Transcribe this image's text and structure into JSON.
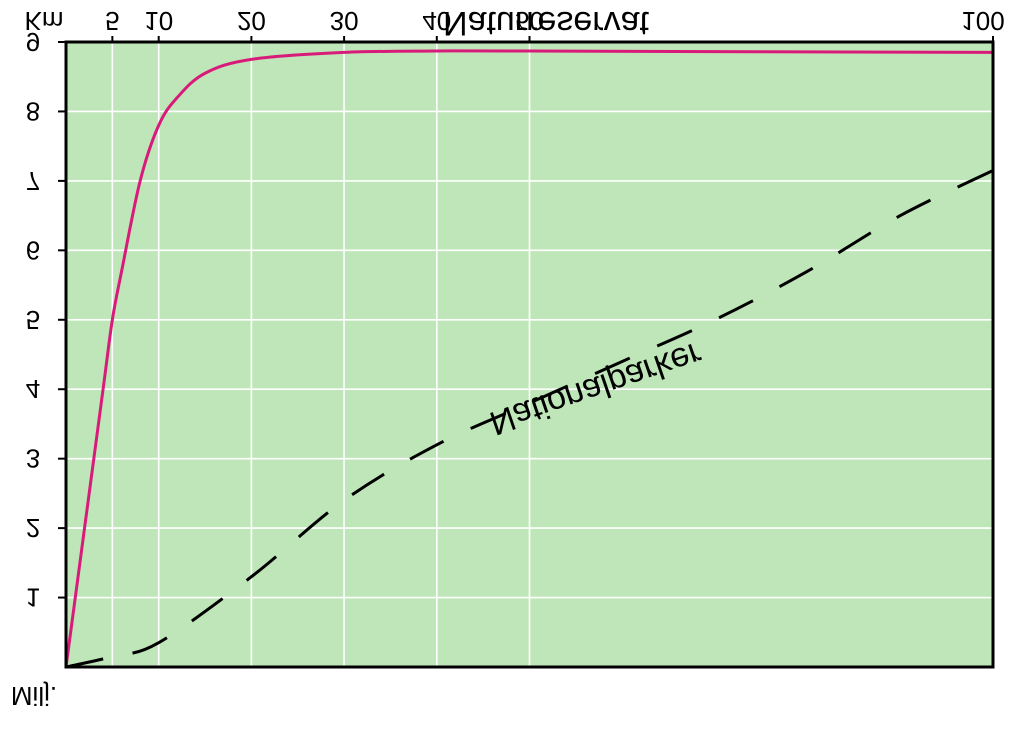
{
  "chart_data": {
    "type": "line",
    "x_axis": {
      "label": "Km",
      "ticks": [
        5,
        10,
        20,
        30,
        40,
        50,
        100
      ],
      "tick_labels": [
        "5",
        "10",
        "20",
        "30",
        "40",
        "50",
        "100"
      ],
      "range": [
        0,
        100
      ]
    },
    "y_axis": {
      "label": "Milj.",
      "ticks": [
        1,
        2,
        3,
        4,
        5,
        6,
        7,
        8,
        9
      ],
      "tick_labels": [
        "1",
        "2",
        "3",
        "4",
        "5",
        "6",
        "7",
        "8",
        "9"
      ],
      "range": [
        0,
        9
      ]
    },
    "series": [
      {
        "name": "Nationalparker",
        "style": "dashed",
        "color": "#000000",
        "x": [
          0,
          5,
          10,
          20,
          30,
          40,
          50,
          60,
          70,
          80,
          90,
          100
        ],
        "y": [
          0,
          0.15,
          0.35,
          1.3,
          2.4,
          3.2,
          3.8,
          4.4,
          5.0,
          5.7,
          6.5,
          7.15
        ]
      },
      {
        "name": "Naturreservat",
        "style": "solid",
        "color": "#d81b7a",
        "x": [
          0,
          2,
          4,
          5,
          6,
          8,
          10,
          12,
          15,
          20,
          30,
          40,
          50,
          100
        ],
        "y": [
          0,
          2.0,
          4.0,
          5.0,
          5.7,
          7.0,
          7.8,
          8.2,
          8.55,
          8.75,
          8.85,
          8.87,
          8.87,
          8.85
        ]
      }
    ],
    "background_color": "#bfe6b8",
    "grid": true
  }
}
